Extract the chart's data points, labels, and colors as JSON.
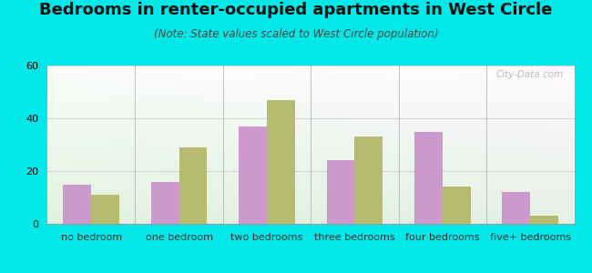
{
  "title": "Bedrooms in renter-occupied apartments in West Circle",
  "subtitle": "(Note: State values scaled to West Circle population)",
  "categories": [
    "no bedroom",
    "one bedroom",
    "two bedrooms",
    "three bedrooms",
    "four bedrooms",
    "five+ bedrooms"
  ],
  "west_circle": [
    15,
    16,
    37,
    24,
    35,
    12
  ],
  "las_vegas": [
    11,
    29,
    47,
    33,
    14,
    3
  ],
  "west_circle_color": "#cc99cc",
  "las_vegas_color": "#b5bc6e",
  "background_outer": "#00e8e8",
  "ylim": [
    0,
    60
  ],
  "yticks": [
    0,
    20,
    40,
    60
  ],
  "bar_width": 0.32,
  "title_fontsize": 13,
  "subtitle_fontsize": 8.5,
  "tick_fontsize": 8,
  "legend_fontsize": 9,
  "watermark_text": "City-Data.com"
}
